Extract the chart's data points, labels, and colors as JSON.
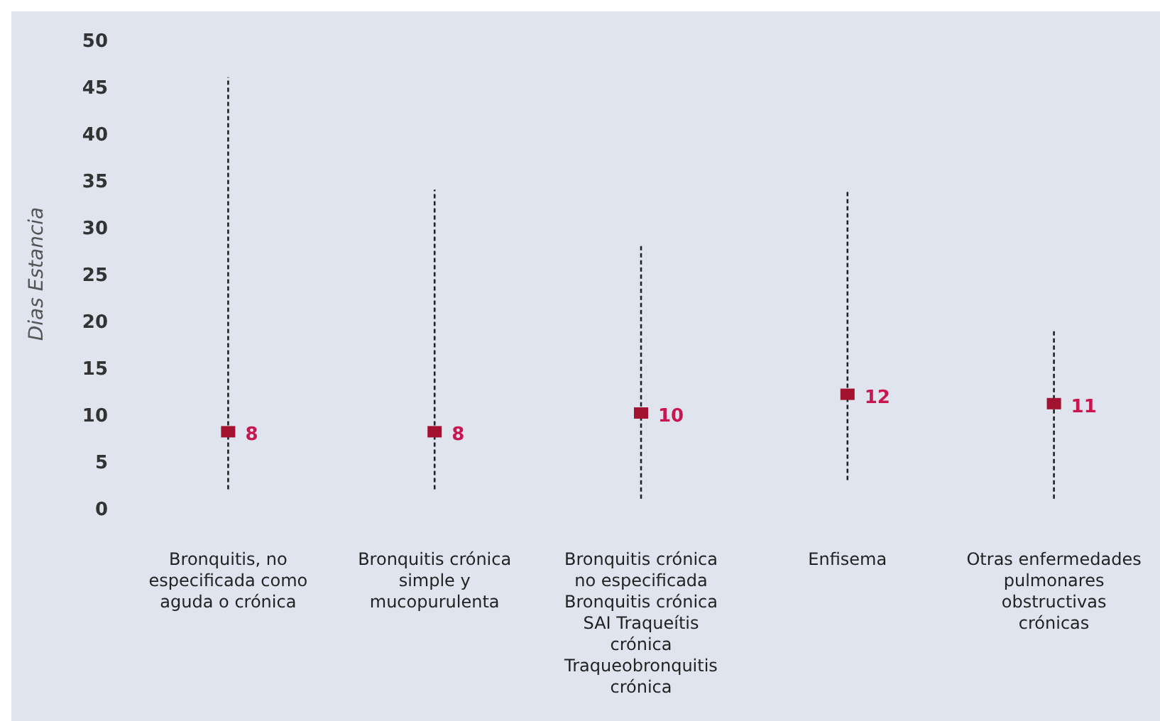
{
  "chart_data": {
    "type": "scatter",
    "ylabel": "Dias Estancia",
    "categories": [
      "Bronquitis, no especificada como aguda o crónica",
      "Bronquitis crónica simple y mucopurulenta",
      "Bronquitis crónica no especificada Bronquitis crónica SAI Traqueítis crónica Traqueobronquitis crónica",
      "Enfisema",
      "Otras enfermedades pulmonares obstructivas crónicas"
    ],
    "values": [
      8,
      8,
      10,
      12,
      11
    ],
    "errors": [
      [
        2,
        46
      ],
      [
        2,
        34
      ],
      [
        1,
        28
      ],
      [
        3,
        34
      ],
      [
        1,
        19
      ]
    ],
    "color": "#a3122e",
    "marker": "square",
    "data_labels": true,
    "ylim": [
      0,
      50
    ],
    "yticks": [
      0,
      5,
      10,
      15,
      20,
      25,
      30,
      35,
      40,
      45,
      50
    ],
    "grid": false
  }
}
